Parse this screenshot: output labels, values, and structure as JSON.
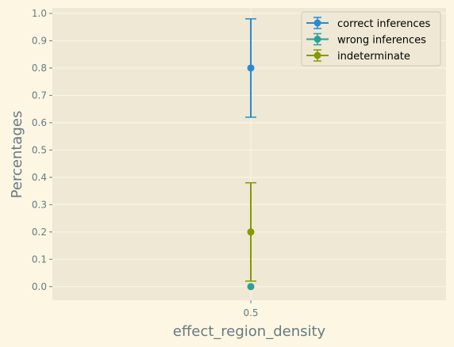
{
  "chart_data": {
    "type": "errorbar",
    "xlabel": "effect_region_density",
    "ylabel": "Percentages",
    "categories": [
      "0.5"
    ],
    "ylim": [
      -0.05,
      1.02
    ],
    "yticks": [
      0.0,
      0.1,
      0.2,
      0.3,
      0.4,
      0.5,
      0.6,
      0.7,
      0.8,
      0.9,
      1.0
    ],
    "ytick_labels": [
      "0.0",
      "0.1",
      "0.2",
      "0.3",
      "0.4",
      "0.5",
      "0.6",
      "0.7",
      "0.8",
      "0.9",
      "1.0"
    ],
    "grid": true,
    "legend_position": "top-right",
    "series": [
      {
        "name": "correct inferences",
        "color": "#268bd2",
        "x": [
          0.5
        ],
        "values": [
          0.8
        ],
        "error": [
          0.18
        ]
      },
      {
        "name": "wrong inferences",
        "color": "#2aa198",
        "x": [
          0.5
        ],
        "values": [
          0.0
        ],
        "error": [
          0.0
        ]
      },
      {
        "name": "indeterminate",
        "color": "#859900",
        "x": [
          0.5
        ],
        "values": [
          0.2
        ],
        "error": [
          0.18
        ]
      }
    ],
    "colors": {
      "figure_background": "#fdf6e3",
      "axes_background": "#eee8d5",
      "grid": "#fdf6e3",
      "text": "#657b83"
    }
  }
}
